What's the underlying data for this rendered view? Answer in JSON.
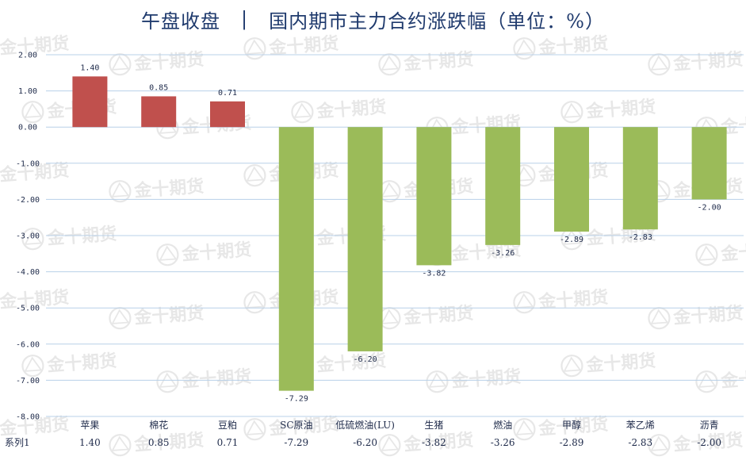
{
  "header": {
    "left": "午盘收盘",
    "separator": "|",
    "right": "国内期市主力合约涨跌幅（单位：%）"
  },
  "watermark": {
    "text": "金十期货"
  },
  "colors": {
    "positive": "#c0504d",
    "negative": "#9bbb59",
    "grid": "#b8d0e8",
    "text": "#1e2a4a",
    "title": "#1f3a6d"
  },
  "chart_data": {
    "type": "bar",
    "categories": [
      "苹果",
      "棉花",
      "豆粕",
      "SC原油",
      "低硫燃油(LU)",
      "生猪",
      "燃油",
      "甲醇",
      "苯乙烯",
      "沥青"
    ],
    "series": [
      {
        "name": "系列1",
        "values": [
          1.4,
          0.85,
          0.71,
          -7.29,
          -6.2,
          -3.82,
          -3.26,
          -2.89,
          -2.83,
          -2.0
        ],
        "value_labels": [
          "1.40",
          "0.85",
          "0.71",
          "-7.29",
          "-6.20",
          "-3.82",
          "-3.26",
          "-2.89",
          "-2.83",
          "-2.00"
        ]
      }
    ],
    "yticks": [
      "2.00",
      "1.00",
      "0.00",
      "-1.00",
      "-2.00",
      "-3.00",
      "-4.00",
      "-5.00",
      "-6.00",
      "-7.00",
      "-8.00"
    ],
    "ylim": [
      -8,
      2
    ],
    "grid": true,
    "data_table": true
  }
}
